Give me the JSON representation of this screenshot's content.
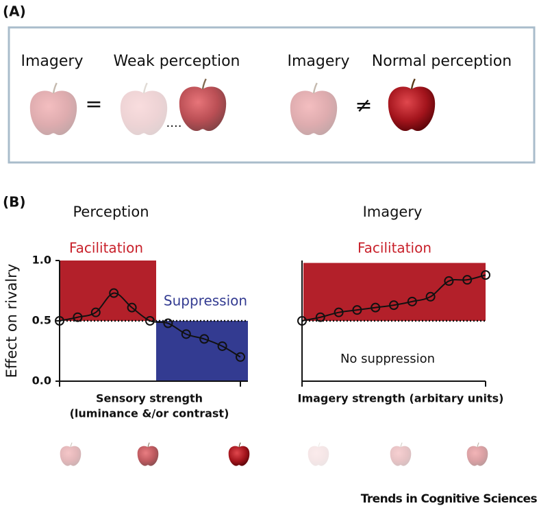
{
  "panel_a": {
    "label": "(A)",
    "imagery_1": "Imagery",
    "weak": "Weak perception",
    "equals": "=",
    "dots": "....",
    "imagery_2": "Imagery",
    "normal": "Normal perception",
    "not_equals": "≠"
  },
  "panel_b": {
    "label": "(B)",
    "ylabel": "Effect on rivalry"
  },
  "chart_data": [
    {
      "type": "line",
      "title": "Perception",
      "xlabel": [
        "Sensory strength",
        "(luminance &/or contrast)"
      ],
      "categories": [
        null,
        null,
        null,
        null,
        null,
        null,
        null,
        null,
        null,
        null,
        null
      ],
      "values": [
        0.5,
        0.53,
        0.57,
        0.73,
        0.61,
        0.5,
        0.48,
        0.39,
        0.35,
        0.29,
        0.2
      ],
      "ylim": [
        0,
        1
      ],
      "yticks": [
        {
          "value": 0,
          "label": "0.0"
        },
        {
          "value": 0.5,
          "label": "0.5"
        },
        {
          "value": 1,
          "label": "1.0"
        }
      ],
      "reference_line": 0.5,
      "regions": [
        {
          "label": "Facilitation",
          "color": "#b3202a",
          "label_color": "#c8202a",
          "ylim": [
            0.5,
            1
          ]
        },
        {
          "label": "Suppression",
          "color": "#333b91",
          "label_color": "#333b91",
          "ylim": [
            0,
            0.5
          ]
        }
      ]
    },
    {
      "type": "line",
      "title": "Imagery",
      "xlabel": [
        "Imagery strength (arbitary units)"
      ],
      "categories": [
        null,
        null,
        null,
        null,
        null,
        null,
        null,
        null,
        null,
        null,
        null
      ],
      "values": [
        0.5,
        0.53,
        0.57,
        0.59,
        0.61,
        0.63,
        0.66,
        0.7,
        0.83,
        0.84,
        0.88
      ],
      "ylim": [
        0,
        1
      ],
      "reference_line": 0.5,
      "annotations": [
        "No suppression"
      ],
      "regions": [
        {
          "label": "Facilitation",
          "color": "#b3202a",
          "label_color": "#c8202a",
          "ylim": [
            0.5,
            0.98
          ]
        }
      ]
    }
  ],
  "footer": "Trends in Cognitive Sciences"
}
